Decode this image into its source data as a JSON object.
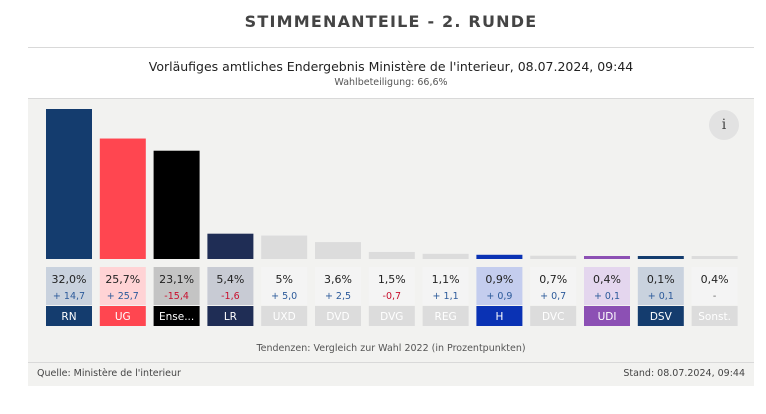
{
  "header": {
    "title": "STIMMENANTEILE  -  2.  RUNDE",
    "subtitle": "Vorläufiges amtliches Endergebnis Ministère de l'interieur, 08.07.2024, 09:44",
    "turnout": "Wahlbeteiligung: 66,6%"
  },
  "info_label": "i",
  "footer": {
    "note": "Tendenzen: Vergleich zur Wahl 2022 (in Prozentpunkten)",
    "source": "Quelle: Ministère de l'interieur",
    "stand": "Stand: 08.07.2024, 09:44"
  },
  "chart_data": {
    "type": "bar",
    "ylim": [
      0,
      32
    ],
    "categories": [
      "RN",
      "UG",
      "Ense...",
      "LR",
      "UXD",
      "DVD",
      "DVG",
      "REG",
      "H",
      "DVC",
      "UDI",
      "DSV",
      "Sonst."
    ],
    "values": [
      32.0,
      25.7,
      23.1,
      5.4,
      5.0,
      3.6,
      1.5,
      1.1,
      0.9,
      0.7,
      0.4,
      0.1,
      0.4
    ],
    "value_labels": [
      "32,0%",
      "25,7%",
      "23,1%",
      "5,4%",
      "5%",
      "3,6%",
      "1,5%",
      "1,1%",
      "0,9%",
      "0,7%",
      "0,4%",
      "0,1%",
      "0,4%"
    ],
    "changes": [
      14.7,
      25.7,
      -15.4,
      -1.6,
      5.0,
      2.5,
      -0.7,
      1.1,
      0.9,
      0.7,
      0.1,
      0.1,
      null
    ],
    "change_labels": [
      "+ 14,7",
      "+ 25,7",
      "-15,4",
      "-1,6",
      "+ 5,0",
      "+ 2,5",
      "-0,7",
      "+ 1,1",
      "+ 0,9",
      "+ 0,7",
      "+ 0,1",
      "+ 0,1",
      "-"
    ],
    "colors": [
      "#143c6e",
      "#ff4650",
      "#000000",
      "#1f2d55",
      "#dcdcdc",
      "#dcdcdc",
      "#dcdcdc",
      "#dcdcdc",
      "#0a32b4",
      "#dcdcdc",
      "#8c50b4",
      "#143c6e",
      "#dcdcdc"
    ],
    "label_bg": [
      "#c9d2de",
      "#ffd3d5",
      "#c4c4c4",
      "#c8cbd4",
      "#f4f4f4",
      "#f4f4f4",
      "#f4f4f4",
      "#f4f4f4",
      "#c4cdee",
      "#f4f4f4",
      "#e4d6ee",
      "#c9d2de",
      "#f4f4f4"
    ],
    "tag_text_colors": [
      "#ffffff",
      "#ffffff",
      "#ffffff",
      "#ffffff",
      "#ffffff",
      "#ffffff",
      "#ffffff",
      "#ffffff",
      "#ffffff",
      "#ffffff",
      "#ffffff",
      "#ffffff",
      "#ffffff"
    ],
    "positive_color": "#2c5a9a",
    "negative_color": "#c8102e",
    "neutral_color": "#666666"
  }
}
